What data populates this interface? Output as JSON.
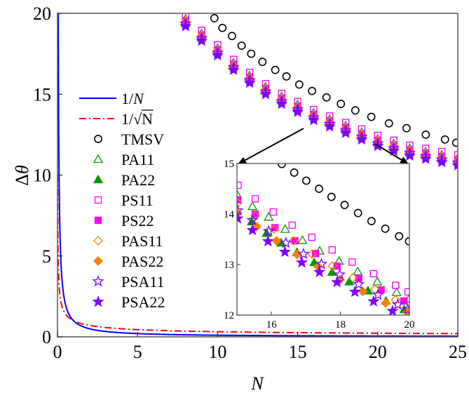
{
  "chart_data": {
    "type": "scatter",
    "xlabel": "N",
    "ylabel": "Δθ",
    "xlim": [
      0,
      25
    ],
    "ylim": [
      0,
      20
    ],
    "xticks": [
      "0",
      "5",
      "10",
      "15",
      "20",
      "25"
    ],
    "yticks": [
      "0",
      "5",
      "10",
      "15",
      "20"
    ],
    "grid": false,
    "legend_placement": "center-left",
    "colors": {
      "1/N": "#0000ff",
      "1/sqrtN": "#ff0000",
      "TMSV": "#000000",
      "PA": "#009900",
      "PS": "#ff00ff",
      "PAS": "#ff8000",
      "PSA": "#8000ff"
    },
    "lines": [
      {
        "name": "1/N",
        "formula": "1/N",
        "style": "solid",
        "color": "#0000ff"
      },
      {
        "name": "1/√N",
        "formula": "1/sqrt(N)",
        "style": "dash-dot",
        "color": "#ff0000"
      }
    ],
    "main_x": [
      8,
      9,
      10,
      11,
      12,
      13,
      14,
      15,
      16,
      17,
      18,
      19,
      20,
      21,
      22,
      23,
      24,
      25
    ],
    "series": [
      {
        "name": "TMSV",
        "marker": "circle-open",
        "color": "#000000",
        "x": [
          9.8,
          10.3,
          10.9,
          11.5,
          12.1,
          12.8,
          13.6,
          14.3,
          15.1,
          15.9,
          16.8,
          17.7,
          18.6,
          19.6,
          20.7,
          21.8,
          23.0,
          24.2,
          24.9
        ],
        "y": [
          19.7,
          19.1,
          18.6,
          18.0,
          17.5,
          17.0,
          16.5,
          16.1,
          15.6,
          15.2,
          14.8,
          14.4,
          14.0,
          13.6,
          13.2,
          12.9,
          12.5,
          12.2,
          12.0
        ]
      },
      {
        "name": "PA11",
        "marker": "triangle-open",
        "color": "#009900",
        "y": [
          19.65,
          18.75,
          17.85,
          16.95,
          16.15,
          15.45,
          14.85,
          14.35,
          13.85,
          13.45,
          13.05,
          12.65,
          12.25,
          11.95,
          11.65,
          11.45,
          11.25,
          11.05
        ]
      },
      {
        "name": "PA22",
        "marker": "triangle-filled",
        "color": "#009900",
        "y": [
          19.4,
          18.5,
          17.6,
          16.7,
          15.9,
          15.2,
          14.6,
          14.1,
          13.6,
          13.2,
          12.8,
          12.4,
          12.0,
          11.7,
          11.4,
          11.2,
          11.0,
          10.8
        ]
      },
      {
        "name": "PS11",
        "marker": "square-open",
        "color": "#ff00ff",
        "y": [
          19.85,
          18.95,
          18.05,
          17.15,
          16.35,
          15.65,
          15.05,
          14.55,
          14.05,
          13.65,
          13.25,
          12.85,
          12.45,
          12.15,
          11.85,
          11.65,
          11.45,
          11.25
        ]
      },
      {
        "name": "PS22",
        "marker": "square-filled",
        "color": "#ff00ff",
        "y": [
          19.55,
          18.65,
          17.75,
          16.85,
          16.05,
          15.35,
          14.75,
          14.25,
          13.75,
          13.35,
          12.95,
          12.55,
          12.15,
          11.85,
          11.55,
          11.35,
          11.15,
          10.95
        ]
      },
      {
        "name": "PAS11",
        "marker": "diamond-open",
        "color": "#ff8000",
        "y": [
          19.5,
          18.6,
          17.7,
          16.8,
          16.0,
          15.3,
          14.7,
          14.2,
          13.7,
          13.3,
          12.9,
          12.5,
          12.1,
          11.8,
          11.5,
          11.3,
          11.1,
          10.9
        ]
      },
      {
        "name": "PAS22",
        "marker": "diamond-filled",
        "color": "#ff8000",
        "y": [
          19.35,
          18.45,
          17.55,
          16.65,
          15.85,
          15.15,
          14.55,
          14.05,
          13.55,
          13.15,
          12.75,
          12.35,
          11.95,
          11.65,
          11.35,
          11.15,
          10.95,
          10.75
        ]
      },
      {
        "name": "PSA11",
        "marker": "star-open",
        "color": "#8000ff",
        "y": [
          19.35,
          18.45,
          17.55,
          16.65,
          15.85,
          15.15,
          14.55,
          14.05,
          13.55,
          13.15,
          12.75,
          12.35,
          11.95,
          11.65,
          11.35,
          11.15,
          10.95,
          10.75
        ]
      },
      {
        "name": "PSA22",
        "marker": "star-filled",
        "color": "#8000ff",
        "y": [
          19.2,
          18.3,
          17.4,
          16.5,
          15.7,
          15.0,
          14.4,
          13.9,
          13.4,
          13.0,
          12.6,
          12.2,
          11.8,
          11.5,
          11.2,
          11.0,
          10.8,
          10.6
        ]
      }
    ],
    "inset": {
      "xlim": [
        15,
        20
      ],
      "ylim": [
        12,
        15
      ],
      "xticks": [
        "16",
        "18",
        "20"
      ],
      "yticks": [
        "12",
        "13",
        "14",
        "15"
      ],
      "series": [
        {
          "name": "TMSV",
          "x": [
            16.3,
            16.66,
            17.01,
            17.38,
            17.74,
            18.12,
            18.51,
            18.9,
            19.3,
            19.7,
            19.99
          ],
          "y": [
            14.99,
            14.82,
            14.66,
            14.5,
            14.34,
            14.18,
            14.02,
            13.86,
            13.71,
            13.56,
            13.46
          ]
        },
        {
          "name": "PA11",
          "x": [
            15.0,
            15.45,
            15.92,
            16.4,
            16.9,
            17.4,
            17.96,
            18.5,
            19.07,
            19.63,
            19.99
          ],
          "y": [
            14.39,
            14.15,
            13.94,
            13.7,
            13.48,
            13.27,
            13.07,
            12.86,
            12.66,
            12.45,
            12.32
          ]
        },
        {
          "name": "PA22",
          "x": [
            15.0,
            15.43,
            15.86,
            16.28,
            16.74,
            17.24,
            17.76,
            18.26,
            18.8,
            19.32,
            19.85
          ],
          "y": [
            14.05,
            13.85,
            13.62,
            13.43,
            13.24,
            13.04,
            12.85,
            12.66,
            12.48,
            12.28,
            12.11
          ]
        },
        {
          "name": "PS11",
          "x": [
            15.03,
            15.53,
            16.05,
            16.6,
            17.17,
            17.76,
            18.34,
            18.96,
            19.6,
            19.96
          ],
          "y": [
            14.57,
            14.3,
            14.04,
            13.78,
            13.54,
            13.29,
            13.05,
            12.82,
            12.59,
            12.46
          ]
        },
        {
          "name": "PS22",
          "x": [
            15.02,
            15.53,
            16.1,
            16.68,
            17.28,
            17.9,
            18.53,
            19.18,
            19.84
          ],
          "y": [
            14.28,
            14.0,
            13.73,
            13.47,
            13.22,
            12.97,
            12.73,
            12.5,
            12.28
          ]
        },
        {
          "name": "PAS11",
          "x": [
            15.02,
            15.53,
            16.07,
            16.64,
            17.18,
            17.77,
            18.36,
            19.0,
            19.6
          ],
          "y": [
            14.22,
            13.97,
            13.7,
            13.47,
            13.21,
            12.97,
            12.74,
            12.51,
            12.3
          ]
        },
        {
          "name": "PAS22",
          "x": [
            15.02,
            15.57,
            16.15,
            16.74,
            17.35,
            17.99,
            18.65,
            19.31,
            19.95
          ],
          "y": [
            14.02,
            13.75,
            13.47,
            13.2,
            12.96,
            12.7,
            12.47,
            12.24,
            12.06
          ]
        },
        {
          "name": "PSA11",
          "x": [
            15.02,
            15.45,
            15.92,
            16.42,
            16.93,
            17.45,
            17.98,
            18.53,
            19.09,
            19.66,
            19.95
          ],
          "y": [
            14.07,
            13.88,
            13.66,
            13.43,
            13.21,
            13.01,
            12.8,
            12.61,
            12.4,
            12.21,
            12.11
          ]
        },
        {
          "name": "PSA22",
          "x": [
            15.02,
            15.45,
            15.9,
            16.39,
            16.88,
            17.39,
            17.9,
            18.42,
            18.96,
            19.51
          ],
          "y": [
            13.91,
            13.68,
            13.46,
            13.25,
            13.04,
            12.85,
            12.65,
            12.46,
            12.27,
            12.08
          ]
        }
      ]
    },
    "legend": [
      {
        "label": "1/N"
      },
      {
        "label": "1/√N"
      },
      {
        "label": "TMSV"
      },
      {
        "label": "PA11"
      },
      {
        "label": "PA22"
      },
      {
        "label": "PS11"
      },
      {
        "label": "PS22"
      },
      {
        "label": "PAS11"
      },
      {
        "label": "PAS22"
      },
      {
        "label": "PSA11"
      },
      {
        "label": "PSA22"
      }
    ]
  }
}
